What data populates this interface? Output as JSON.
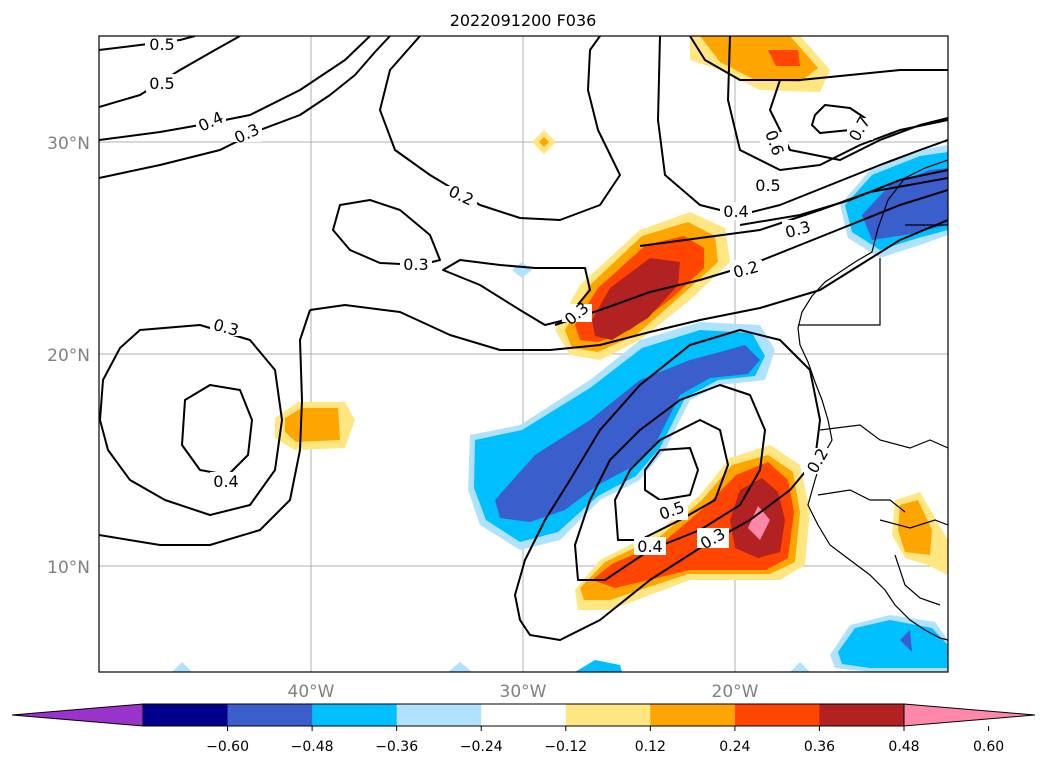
{
  "title": "2022091200 F036",
  "axes": {
    "lat_labels": [
      "30°N",
      "20°N",
      "10°N"
    ],
    "lon_labels": [
      "40°W",
      "30°W",
      "20°W"
    ]
  },
  "colorbar": {
    "ticks": [
      "−0.60",
      "−0.48",
      "−0.36",
      "−0.24",
      "−0.12",
      "0.12",
      "0.24",
      "0.36",
      "0.48",
      "0.60"
    ],
    "colors": [
      "#9933cc",
      "#00008b",
      "#3a5fcd",
      "#00bfff",
      "#b0e2ff",
      "#ffffff",
      "#ffe680",
      "#ffa500",
      "#ff4500",
      "#b22222",
      "#ff88aa"
    ]
  },
  "contour_labels": [
    "0.5",
    "0.5",
    "0.4",
    "0.3",
    "0.2",
    "0.3",
    "0.3",
    "0.4",
    "0.3",
    "0.3",
    "0.2",
    "0.4",
    "0.5",
    "0.6",
    "0.7",
    "0.5",
    "0.4",
    "0.3",
    "0.2"
  ]
}
